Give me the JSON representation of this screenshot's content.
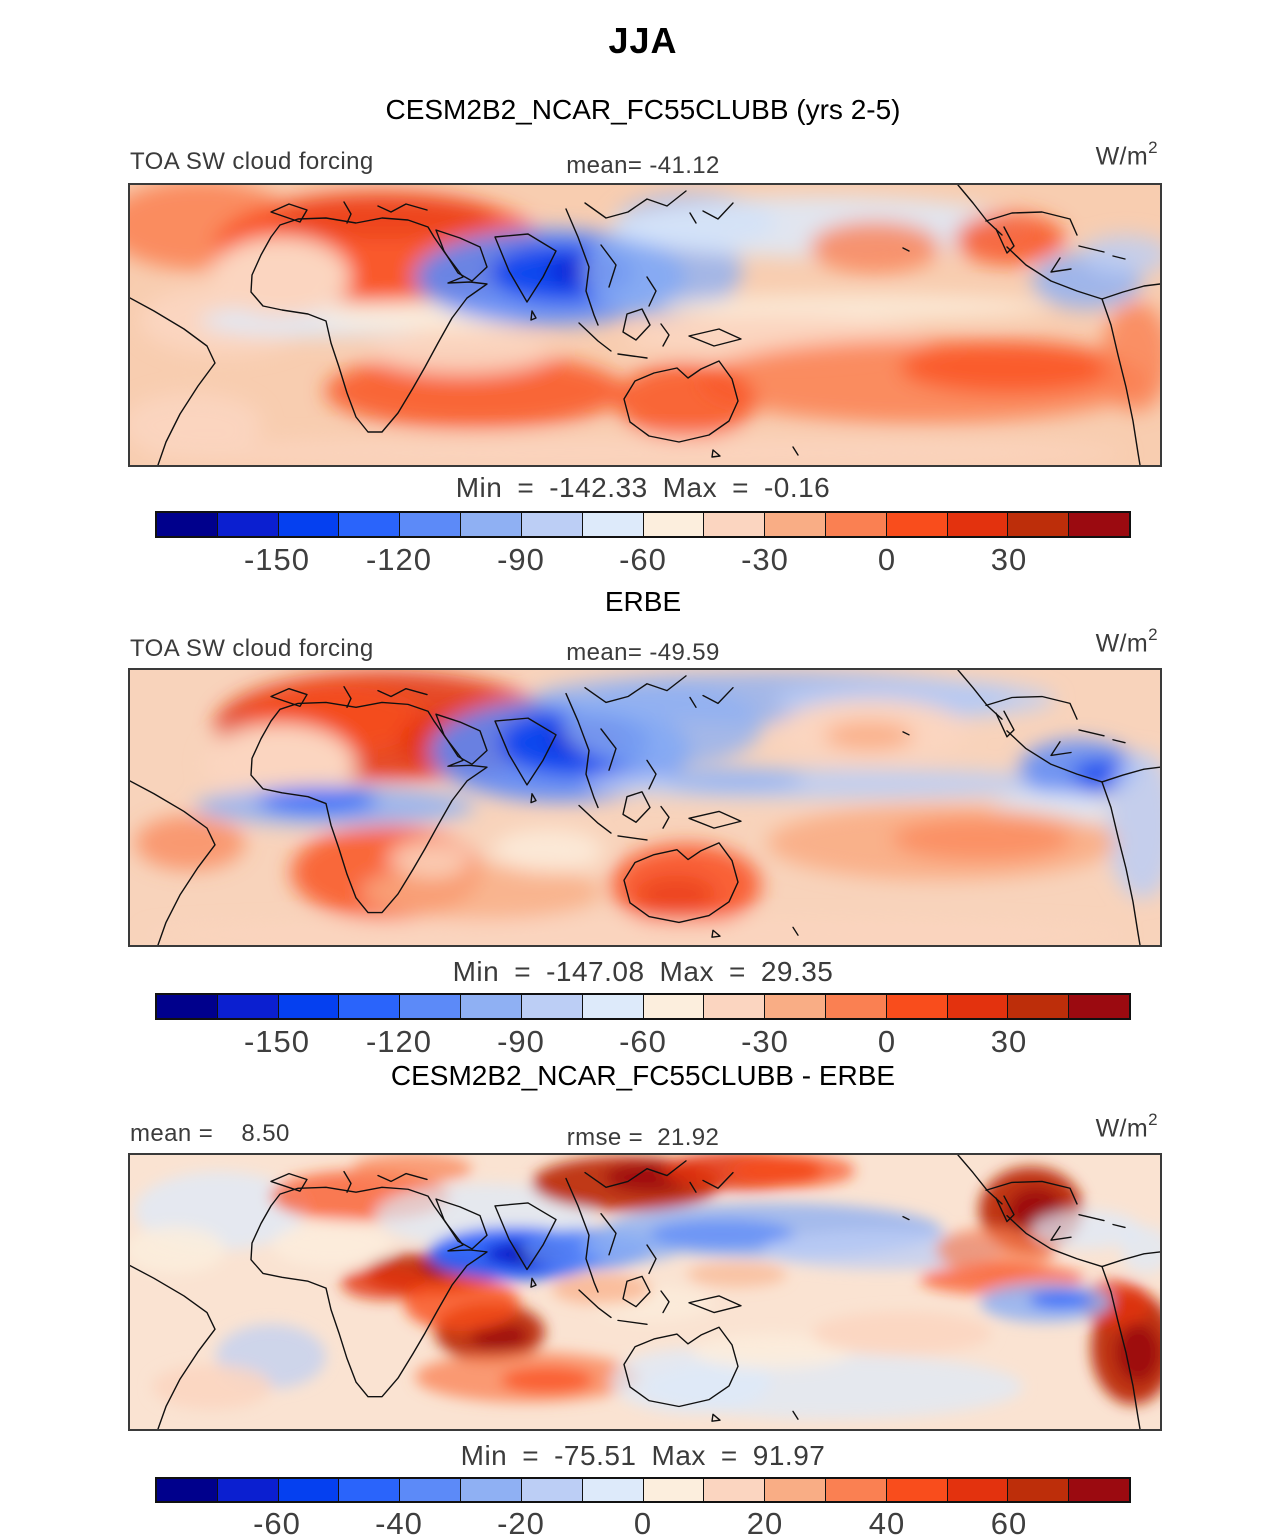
{
  "title": "JJA",
  "labels": {
    "min": "Min",
    "max": "Max",
    "eq": "="
  },
  "palette": [
    "#00008c",
    "#0b1fd0",
    "#0540f0",
    "#2a64fb",
    "#5c8af8",
    "#8fb0f3",
    "#bccef5",
    "#ddeafa",
    "#fceedd",
    "#fbd5c0",
    "#f9ad85",
    "#fa8052",
    "#f94d1c",
    "#e3320e",
    "#bd2e0a",
    "#9b0a10"
  ],
  "panels": [
    {
      "title": "CESM2B2_NCAR_FC55CLUBB (yrs 2-5)",
      "header": {
        "left": "TOA SW cloud forcing",
        "center": "mean= -41.12",
        "units_base": "W/m",
        "units_exp": "2"
      },
      "stats": {
        "min": "-142.33",
        "max": "-0.16"
      },
      "colorbar": {
        "ticks": [
          "-150",
          "-120",
          "-90",
          "-60",
          "-30",
          "0",
          "30"
        ]
      },
      "map": {
        "base": "#f8cdb0",
        "blur": 10,
        "blobs": [
          [
            70,
            40,
            95,
            45,
            11,
            0.85
          ],
          [
            250,
            62,
            165,
            55,
            12,
            0.9
          ],
          [
            255,
            32,
            110,
            22,
            13,
            0.5
          ],
          [
            95,
            135,
            85,
            35,
            9,
            1
          ],
          [
            190,
            136,
            120,
            16,
            7,
            0.9
          ],
          [
            305,
            131,
            120,
            13,
            8,
            0.95
          ],
          [
            150,
            92,
            70,
            40,
            9,
            1
          ],
          [
            420,
            92,
            135,
            48,
            4,
            0.9
          ],
          [
            432,
            88,
            72,
            28,
            2,
            0.9
          ],
          [
            452,
            86,
            34,
            15,
            1,
            0.85
          ],
          [
            532,
            86,
            80,
            45,
            5,
            0.8
          ],
          [
            566,
            36,
            80,
            28,
            5,
            0.75
          ],
          [
            690,
            42,
            210,
            30,
            7,
            0.85
          ],
          [
            745,
            62,
            65,
            26,
            11,
            0.8
          ],
          [
            880,
            54,
            55,
            26,
            12,
            0.8
          ],
          [
            957,
            96,
            55,
            28,
            5,
            0.85
          ],
          [
            996,
            70,
            45,
            20,
            6,
            0.8
          ],
          [
            725,
            122,
            195,
            12,
            8,
            0.85
          ],
          [
            645,
            152,
            150,
            22,
            9,
            1
          ],
          [
            795,
            196,
            225,
            42,
            11,
            0.85
          ],
          [
            880,
            182,
            110,
            26,
            12,
            0.75
          ],
          [
            345,
            206,
            150,
            38,
            12,
            0.8
          ],
          [
            556,
            216,
            70,
            38,
            12,
            0.8
          ],
          [
            1006,
            172,
            35,
            55,
            11,
            0.8
          ],
          [
            505,
            268,
            490,
            16,
            9,
            0.85
          ],
          [
            62,
            240,
            70,
            32,
            9,
            0.95
          ],
          [
            332,
            166,
            90,
            22,
            9,
            0.95
          ]
        ]
      }
    },
    {
      "title": "ERBE",
      "header": {
        "left": "TOA SW cloud forcing",
        "center": "mean= -49.59",
        "units_base": "W/m",
        "units_exp": "2"
      },
      "stats": {
        "min": "-147.08",
        "max": "29.35"
      },
      "colorbar": {
        "ticks": [
          "-150",
          "-120",
          "-90",
          "-60",
          "-30",
          "0",
          "30"
        ]
      },
      "map": {
        "base": "#f8d3bb",
        "blur": 10,
        "blobs": [
          [
            255,
            57,
            170,
            56,
            13,
            0.85
          ],
          [
            205,
            50,
            90,
            35,
            12,
            0.7
          ],
          [
            340,
            72,
            70,
            35,
            13,
            0.8
          ],
          [
            150,
            95,
            75,
            40,
            9,
            1
          ],
          [
            205,
            139,
            140,
            20,
            5,
            0.85
          ],
          [
            188,
            133,
            60,
            14,
            3,
            0.8
          ],
          [
            430,
            82,
            130,
            52,
            4,
            0.9
          ],
          [
            444,
            74,
            75,
            33,
            2,
            0.9
          ],
          [
            456,
            69,
            38,
            17,
            1,
            0.85
          ],
          [
            532,
            57,
            100,
            42,
            5,
            0.8
          ],
          [
            645,
            28,
            240,
            26,
            5,
            0.8
          ],
          [
            785,
            30,
            140,
            20,
            6,
            0.8
          ],
          [
            700,
            116,
            245,
            15,
            6,
            0.9
          ],
          [
            605,
            112,
            70,
            12,
            5,
            0.8
          ],
          [
            949,
            101,
            60,
            30,
            4,
            0.85
          ],
          [
            973,
            106,
            30,
            14,
            2,
            0.8
          ],
          [
            1012,
            158,
            35,
            75,
            6,
            0.85
          ],
          [
            920,
            142,
            60,
            18,
            7,
            0.85
          ],
          [
            742,
            62,
            95,
            32,
            9,
            1
          ],
          [
            739,
            67,
            45,
            15,
            10,
            0.9
          ],
          [
            812,
            176,
            175,
            38,
            10,
            0.9
          ],
          [
            852,
            172,
            90,
            22,
            11,
            0.65
          ],
          [
            556,
            219,
            75,
            42,
            12,
            0.85
          ],
          [
            546,
            229,
            40,
            20,
            13,
            0.55
          ],
          [
            256,
            206,
            95,
            48,
            12,
            0.8
          ],
          [
            60,
            176,
            55,
            28,
            11,
            0.7
          ],
          [
            352,
            226,
            120,
            28,
            10,
            0.8
          ],
          [
            418,
            184,
            55,
            22,
            8,
            0.8
          ],
          [
            300,
            192,
            40,
            18,
            8,
            0.7
          ],
          [
            505,
            269,
            490,
            14,
            9,
            0.85
          ]
        ]
      }
    },
    {
      "title": "CESM2B2_NCAR_FC55CLUBB - ERBE",
      "header": {
        "left": "mean =    8.50",
        "center": "rmse =  21.92",
        "units_base": "W/m",
        "units_exp": "2"
      },
      "stats": {
        "min": "-75.51",
        "max": "91.97"
      },
      "colorbar": {
        "ticks": [
          "-60",
          "-40",
          "-20",
          "0",
          "20",
          "40",
          "60"
        ]
      },
      "map": {
        "base": "#fae3d2",
        "blur": 7,
        "blobs": [
          [
            90,
            57,
            85,
            40,
            7,
            0.75
          ],
          [
            45,
            97,
            50,
            24,
            8,
            0.85
          ],
          [
            230,
            42,
            90,
            26,
            12,
            0.7
          ],
          [
            282,
            14,
            60,
            16,
            11,
            0.7
          ],
          [
            356,
            62,
            110,
            33,
            7,
            0.7
          ],
          [
            300,
            121,
            65,
            21,
            14,
            0.95
          ],
          [
            321,
            116,
            30,
            11,
            15,
            0.85
          ],
          [
            256,
            131,
            45,
            17,
            13,
            0.8
          ],
          [
            360,
            181,
            55,
            30,
            14,
            0.95
          ],
          [
            369,
            186,
            28,
            15,
            15,
            0.85
          ],
          [
            332,
            152,
            58,
            28,
            12,
            0.8
          ],
          [
            386,
            101,
            88,
            27,
            3,
            0.95
          ],
          [
            400,
            101,
            46,
            14,
            1,
            0.95
          ],
          [
            404,
            101,
            22,
            8,
            0,
            0.9
          ],
          [
            456,
            96,
            65,
            21,
            4,
            0.85
          ],
          [
            502,
            93,
            50,
            17,
            5,
            0.7
          ],
          [
            497,
            29,
            95,
            28,
            14,
            0.95
          ],
          [
            521,
            23,
            46,
            15,
            15,
            0.85
          ],
          [
            612,
            16,
            80,
            20,
            13,
            0.85
          ],
          [
            663,
            16,
            62,
            17,
            12,
            0.7
          ],
          [
            642,
            77,
            170,
            28,
            5,
            0.8
          ],
          [
            592,
            81,
            72,
            15,
            4,
            0.75
          ],
          [
            752,
            97,
            120,
            20,
            6,
            0.75
          ],
          [
            901,
            56,
            52,
            44,
            14,
            0.97
          ],
          [
            906,
            58,
            28,
            24,
            15,
            0.92
          ],
          [
            866,
            97,
            60,
            23,
            11,
            0.7
          ],
          [
            872,
            127,
            82,
            16,
            12,
            0.7
          ],
          [
            1003,
            197,
            42,
            58,
            14,
            0.97
          ],
          [
            1008,
            202,
            22,
            30,
            15,
            0.9
          ],
          [
            986,
            152,
            35,
            24,
            13,
            0.8
          ],
          [
            916,
            151,
            66,
            20,
            5,
            0.85
          ],
          [
            931,
            148,
            32,
            9,
            3,
            0.8
          ],
          [
            956,
            76,
            55,
            20,
            7,
            0.75
          ],
          [
            1016,
            97,
            25,
            24,
            7,
            0.7
          ],
          [
            397,
            227,
            112,
            26,
            11,
            0.75
          ],
          [
            417,
            230,
            46,
            13,
            12,
            0.75
          ],
          [
            561,
            231,
            80,
            33,
            7,
            0.75
          ],
          [
            703,
            237,
            190,
            33,
            7,
            0.7
          ],
          [
            642,
            201,
            80,
            18,
            8,
            0.8
          ],
          [
            141,
            206,
            55,
            33,
            6,
            0.7
          ],
          [
            82,
            237,
            60,
            23,
            9,
            0.85
          ],
          [
            202,
            92,
            60,
            23,
            8,
            0.8
          ],
          [
            522,
            152,
            60,
            18,
            8,
            0.7
          ],
          [
            772,
            182,
            90,
            22,
            9,
            0.85
          ],
          [
            472,
            137,
            50,
            16,
            10,
            0.7
          ],
          [
            607,
            122,
            50,
            13,
            10,
            0.6
          ]
        ]
      }
    }
  ],
  "chart_data": {
    "type": "heatmap",
    "subtype": "filled-contour world maps, cylindrical projection (lon approx -60..300, lat approx -45..45)",
    "season": "JJA",
    "variable": "TOA SW cloud forcing",
    "units": "W/m2",
    "panels": [
      {
        "name": "CESM2B2_NCAR_FC55CLUBB (yrs 2-5)",
        "mean": -41.12,
        "min": -142.33,
        "max": -0.16,
        "colorbar": {
          "range": [
            -180,
            60
          ],
          "step": 15,
          "ticks": [
            -150,
            -120,
            -90,
            -60,
            -30,
            0,
            30
          ]
        }
      },
      {
        "name": "ERBE",
        "mean": -49.59,
        "min": -147.08,
        "max": 29.35,
        "colorbar": {
          "range": [
            -180,
            60
          ],
          "step": 15,
          "ticks": [
            -150,
            -120,
            -90,
            -60,
            -30,
            0,
            30
          ]
        }
      },
      {
        "name": "CESM2B2_NCAR_FC55CLUBB - ERBE",
        "mean": 8.5,
        "rmse": 21.92,
        "min": -75.51,
        "max": 91.97,
        "colorbar": {
          "range": [
            -80,
            80
          ],
          "step": 10,
          "ticks": [
            -60,
            -40,
            -20,
            0,
            20,
            40,
            60
          ]
        }
      }
    ],
    "palette_colors": 16,
    "legend_position": "horizontal colorbar under each panel",
    "notable_features": [
      "panel1: strong negative (blue) SWCF over Arabian Sea/India/SE Asia, weak (orange) over Sahara and southern subtropical oceans",
      "panel2: ERBE shows stronger negatives over Asia and ITCZ, strong positives-relative (orange) Sahara/Arabia/Australia",
      "panel3: model-minus-obs shows dark red biases over E Asia, NE Pacific, Peru stratocumulus and Gulf of Guinea; dark blue bias over Arabian Sea"
    ]
  }
}
